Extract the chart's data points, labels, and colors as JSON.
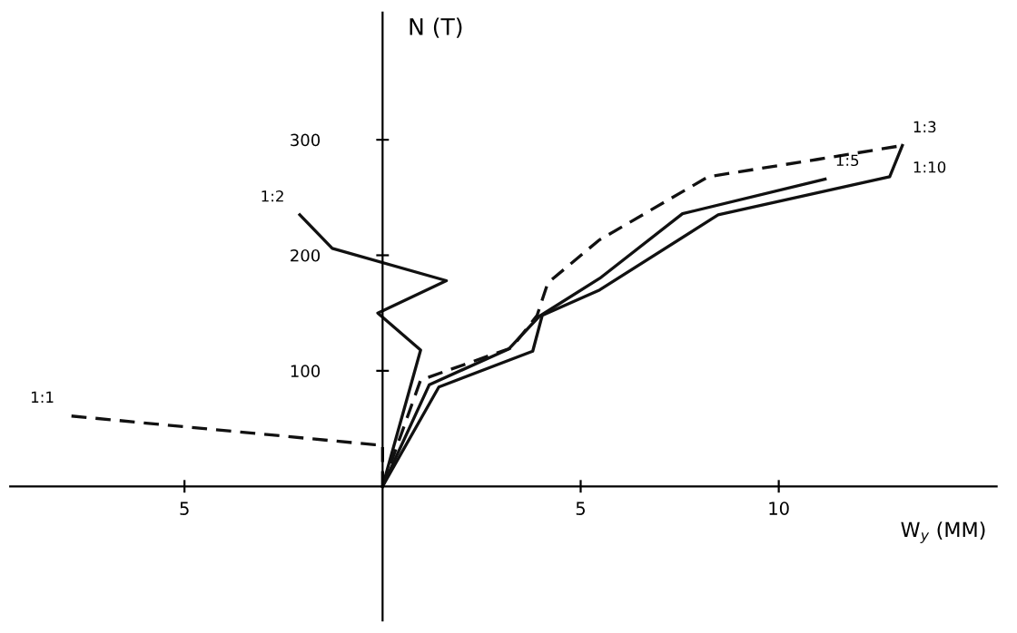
{
  "chart_data": {
    "type": "line",
    "xlabel": "W$_{y}$ (MM)",
    "ylabel": "N (T)",
    "xlim": [
      -9.4,
      15.5
    ],
    "ylim": [
      -116,
      410
    ],
    "xticks": [
      {
        "value": -5,
        "label": "5"
      },
      5,
      10
    ],
    "yticks": [
      100,
      200,
      300
    ],
    "grid": false,
    "legend": false,
    "marker": "none",
    "series": [
      {
        "name": "1:1",
        "color": "#111111",
        "line_style": "dashed",
        "x": [
          0,
          0,
          -0.2,
          -7.9
        ],
        "values": [
          0,
          36,
          36,
          61
        ]
      },
      {
        "name": "1:2",
        "color": "#111111",
        "line_style": "solid",
        "x": [
          0,
          0.96,
          -0.12,
          1.61,
          -1.27,
          -2.09
        ],
        "values": [
          0,
          118,
          150,
          178,
          206,
          235
        ]
      },
      {
        "name": "1:3",
        "color": "#111111",
        "line_style": "dashed",
        "x": [
          0,
          0.96,
          3.26,
          3.9,
          4.17,
          5.46,
          8.22,
          10.98,
          13.12
        ],
        "values": [
          0,
          92,
          120,
          148,
          176,
          213,
          268,
          283,
          295
        ]
      },
      {
        "name": "1:5",
        "color": "#111111",
        "line_style": "solid",
        "x": [
          0,
          1.18,
          3.19,
          3.95,
          5.48,
          7.57,
          11.17
        ],
        "values": [
          0,
          88,
          119,
          147,
          180,
          236,
          266
        ]
      },
      {
        "name": "1:10",
        "color": "#111111",
        "line_style": "solid",
        "x": [
          0,
          1.42,
          3.79,
          4.03,
          5.48,
          8.47,
          12.8,
          13.12
        ],
        "values": [
          0,
          86,
          117,
          148,
          170,
          235,
          268,
          295
        ]
      }
    ]
  }
}
